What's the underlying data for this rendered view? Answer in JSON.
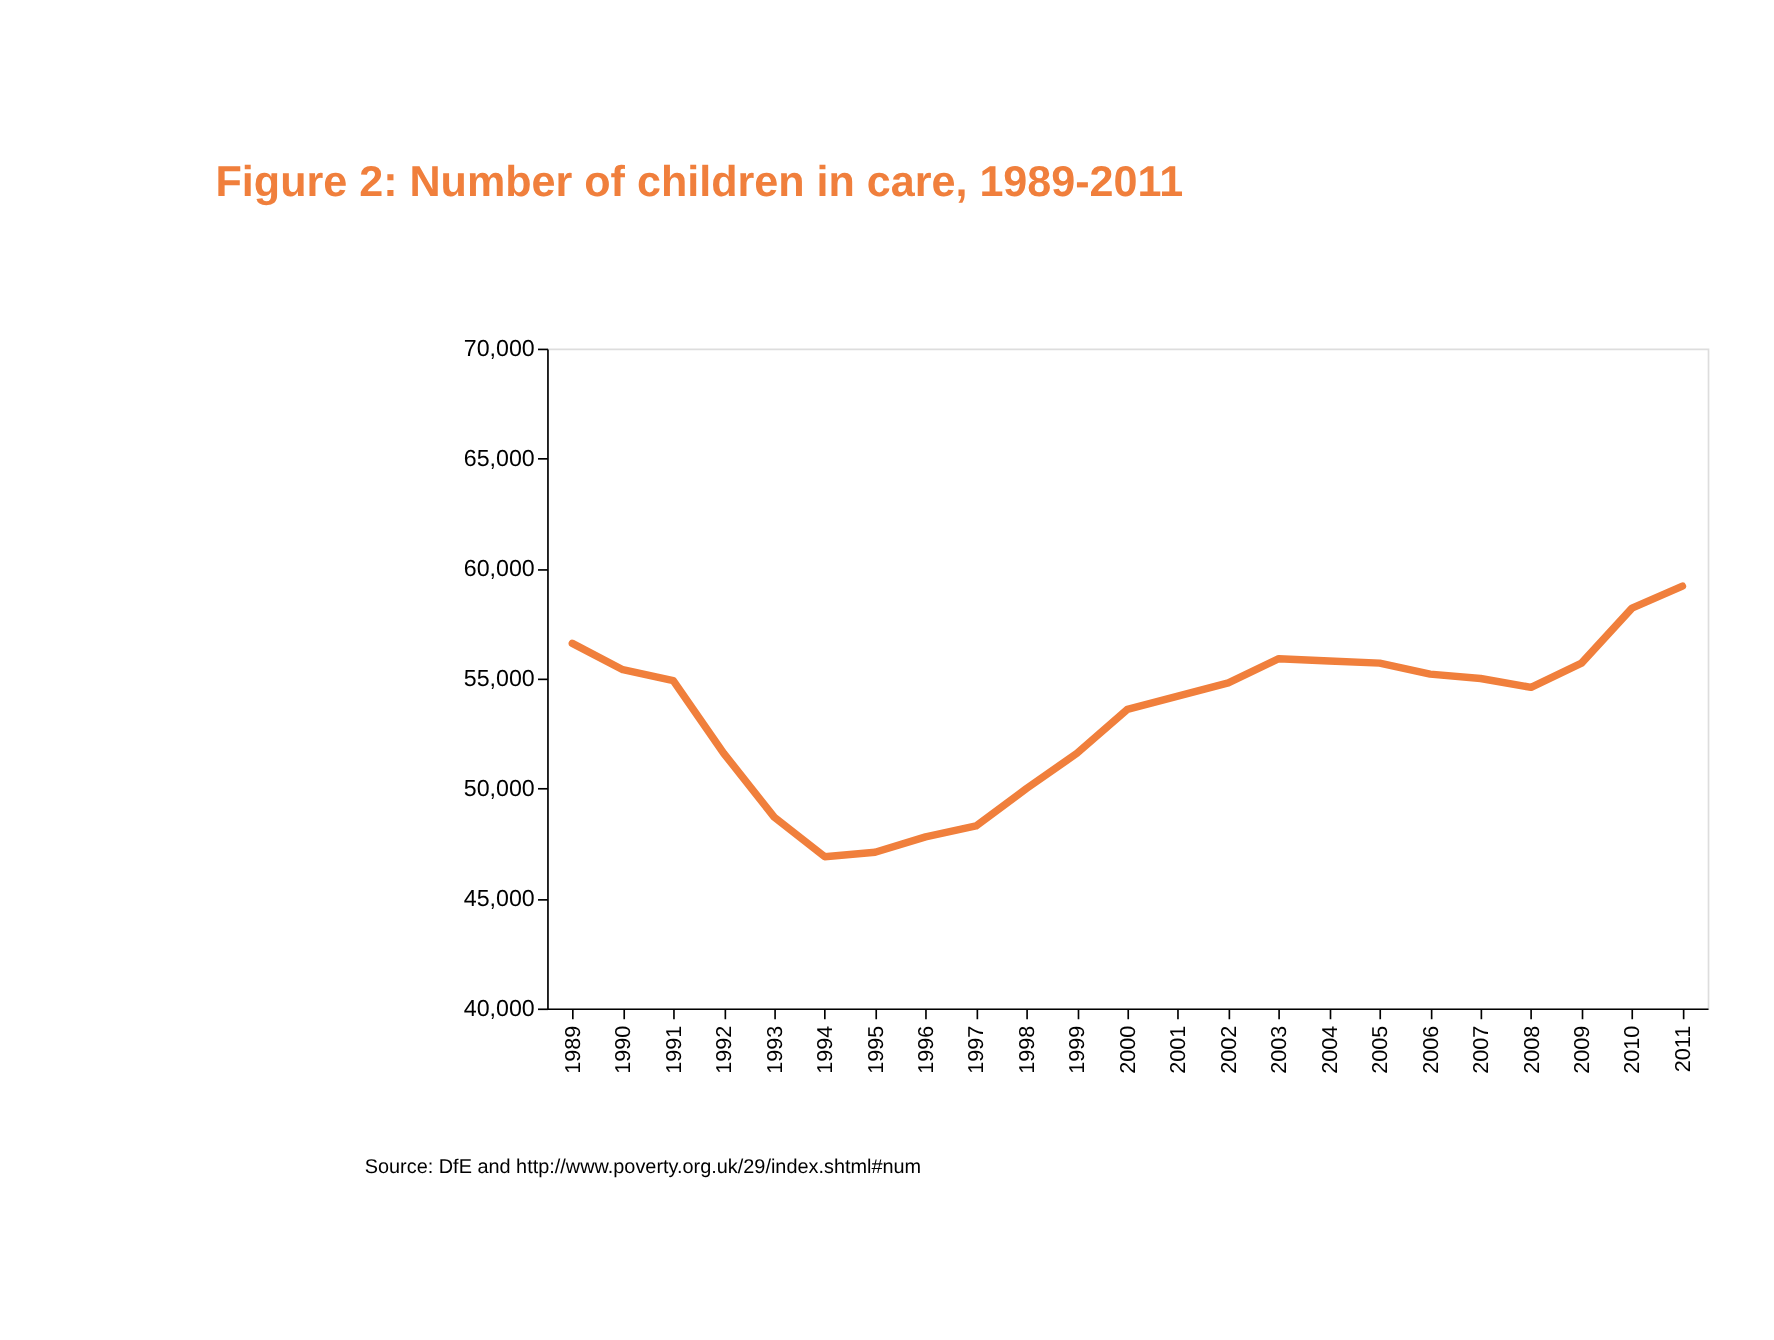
{
  "chart_data": {
    "type": "line",
    "title": "Figure 2: Number of children in care, 1989-2011",
    "categories": [
      "1989",
      "1990",
      "1991",
      "1992",
      "1993",
      "1994",
      "1995",
      "1996",
      "1997",
      "1998",
      "1999",
      "2000",
      "2001",
      "2002",
      "2003",
      "2004",
      "2005",
      "2006",
      "2007",
      "2008",
      "2009",
      "2010",
      "2011"
    ],
    "series": [
      {
        "color": "#f07f3c",
        "values": [
          56600,
          55400,
          54900,
          51600,
          48700,
          46900,
          47100,
          47800,
          48300,
          50000,
          51600,
          53600,
          54200,
          54800,
          55900,
          55800,
          55700,
          55200,
          55000,
          54600,
          55700,
          58200,
          59200
        ]
      }
    ],
    "ylim": [
      40000,
      70000
    ],
    "yticks": [
      {
        "value": 40000,
        "label": "40,000"
      },
      {
        "value": 45000,
        "label": "45,000"
      },
      {
        "value": 50000,
        "label": "50,000"
      },
      {
        "value": 55000,
        "label": "55,000"
      },
      {
        "value": 60000,
        "label": "60,000"
      },
      {
        "value": 65000,
        "label": "65,000"
      },
      {
        "value": 70000,
        "label": "70,000"
      }
    ],
    "grid": false,
    "legend": false,
    "marker": "none",
    "line_style": "solid",
    "annotations": [
      "Source: DfE and http://www.poverty.org.uk/29/index.shtml#num"
    ]
  }
}
